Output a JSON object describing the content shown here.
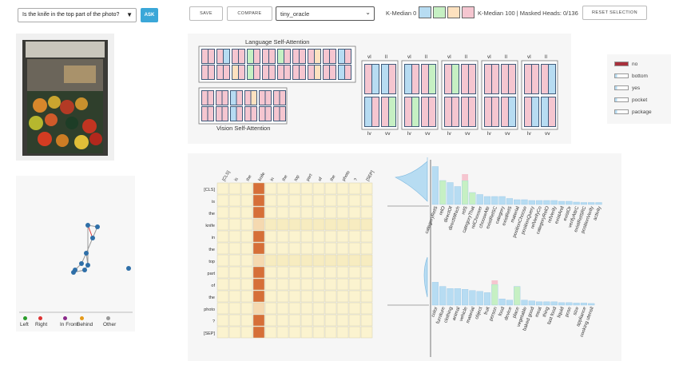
{
  "toolbar": {
    "question": "Is the knife in the top part of the photo?",
    "ask_label": "ASK",
    "save_label": "SAVE",
    "compare_label": "COMPARE",
    "model_value": "tiny_oracle",
    "kmedian0_label": "K-Median 0",
    "kmedian100_label": "K-Median 100 | Masked Heads: 0/136",
    "reset_label": "RESET SELECTION",
    "swatch_colors": [
      "#b7dcf2",
      "#c6f0c3",
      "#fde1bf",
      "#f5c6d0"
    ]
  },
  "attention": {
    "language_title": "Language Self-Attention",
    "vision_title": "Vision Self-Attention",
    "cross_top_labels": [
      "vl",
      "ll",
      "vl",
      "ll",
      "vl",
      "ll",
      "vl",
      "ll",
      "vl",
      "ll"
    ],
    "cross_bottom_labels": [
      "lv",
      "vv",
      "lv",
      "vv",
      "lv",
      "vv",
      "lv",
      "vv",
      "lv",
      "vv"
    ]
  },
  "legend": {
    "items": [
      {
        "label": "no",
        "color": "#a8303c"
      },
      {
        "label": "bottom",
        "color": "#b7dcf2"
      },
      {
        "label": "yes",
        "color": "#b7dcf2"
      },
      {
        "label": "pocket",
        "color": "#b7dcf2"
      },
      {
        "label": "package",
        "color": "#b7dcf2"
      }
    ]
  },
  "graph_legend": [
    {
      "label": "Left",
      "color": "#2a9c2a"
    },
    {
      "label": "Right",
      "color": "#d33"
    },
    {
      "label": "In Front",
      "color": "#8a2a8a"
    },
    {
      "label": "Behind",
      "color": "#e59a1a"
    },
    {
      "label": "Other",
      "color": "#999"
    }
  ],
  "matrix": {
    "tokens": [
      "[CLS]",
      "is",
      "the",
      "knife",
      "in",
      "the",
      "top",
      "part",
      "of",
      "the",
      "photo",
      "?",
      "[SEP]"
    ],
    "highlight_col": 3
  },
  "chart_data": [
    {
      "type": "bar",
      "categories": [
        "categoryRelS",
        "relO",
        "directOf",
        "directWhich",
        "relS",
        "categoryThat",
        "relChooser",
        "chooseAttr",
        "existRelSC",
        "category",
        "existRelS",
        "material",
        "positionChoose",
        "positionQuery",
        "relVerifyCo",
        "categoryRelO",
        "relVerify",
        "existAnd",
        "existOr",
        "verifyAttrC",
        "existRelSRC",
        "positionVerify",
        "activity"
      ],
      "values": [
        0.95,
        0.6,
        0.55,
        0.45,
        0.6,
        0.3,
        0.25,
        0.2,
        0.2,
        0.2,
        0.15,
        0.12,
        0.12,
        0.1,
        0.1,
        0.1,
        0.1,
        0.08,
        0.08,
        0.06,
        0.05,
        0.05,
        0.05
      ],
      "ylim": [
        0,
        1
      ]
    },
    {
      "type": "bar",
      "categories": [
        "color",
        "furniture",
        "clothing",
        "animal",
        "vehicle",
        "material",
        "object",
        "fruit",
        "person",
        "food",
        "device",
        "place",
        "vegetable",
        "baked good",
        "meat",
        "thing",
        "fast food",
        "liquid",
        "pose",
        "size",
        "appliance",
        "cooking utensil"
      ],
      "values": [
        0.55,
        0.45,
        0.4,
        0.4,
        0.38,
        0.35,
        0.33,
        0.3,
        0.5,
        0.15,
        0.12,
        0.45,
        0.12,
        0.1,
        0.08,
        0.08,
        0.08,
        0.06,
        0.06,
        0.05,
        0.05,
        0.04
      ],
      "ylim": [
        0,
        1
      ]
    }
  ]
}
